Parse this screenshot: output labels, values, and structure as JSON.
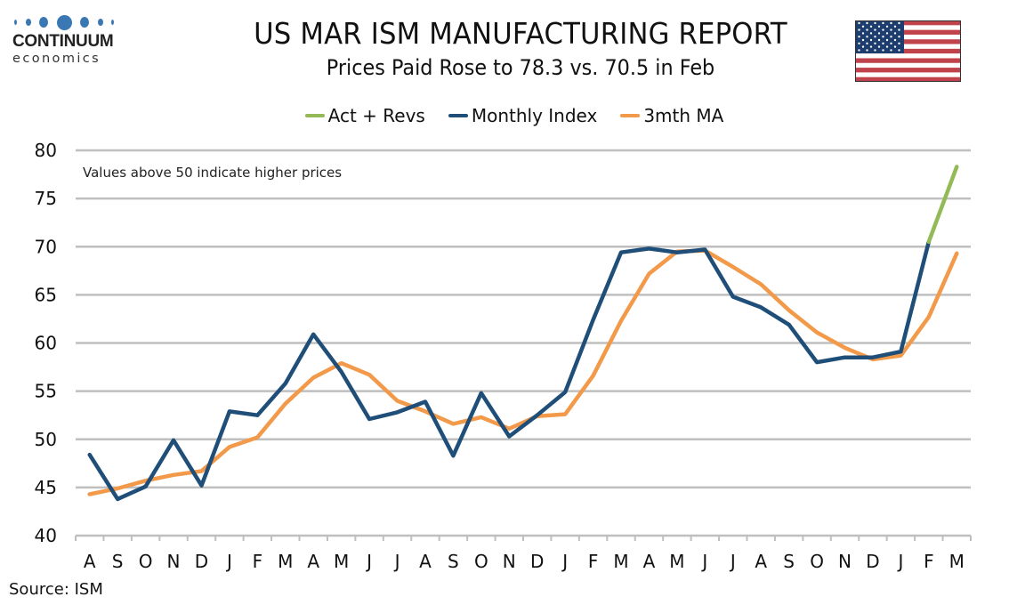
{
  "brand": {
    "name": "CONTINUUM",
    "sub": "economics",
    "color": "#3a78b4"
  },
  "header": {
    "title": "US MAR ISM MANUFACTURING REPORT",
    "subtitle": "Prices Paid Rose to 78.3 vs. 70.5 in Feb",
    "flag_icon": "us-flag-icon"
  },
  "source": "Source: ISM",
  "colors": {
    "act_revs": "#94ba57",
    "monthly": "#1f4e79",
    "ma": "#f2994a",
    "grid": "#bfbfbf",
    "flag_red": "#c0424a",
    "flag_blue": "#1c3d6e"
  },
  "chart_data": {
    "type": "line",
    "title": "US MAR ISM MANUFACTURING REPORT",
    "subtitle": "Prices Paid Rose to 78.3 vs. 70.5 in Feb",
    "annotation": "Values above 50 indicate higher prices",
    "xlabel": "",
    "ylabel": "",
    "ylim": [
      40,
      80
    ],
    "yticks": [
      40,
      45,
      50,
      55,
      60,
      65,
      70,
      75,
      80
    ],
    "grid": true,
    "legend_position": "top-center",
    "categories": [
      "A",
      "S",
      "O",
      "N",
      "D",
      "J",
      "F",
      "M",
      "A",
      "M",
      "J",
      "J",
      "A",
      "S",
      "O",
      "N",
      "D",
      "J",
      "F",
      "M",
      "A",
      "M",
      "J",
      "J",
      "A",
      "S",
      "O",
      "N",
      "D",
      "J",
      "F",
      "M"
    ],
    "series": [
      {
        "name": "Act + Revs",
        "color": "#94ba57",
        "values": [
          null,
          null,
          null,
          null,
          null,
          null,
          null,
          null,
          null,
          null,
          null,
          null,
          null,
          null,
          null,
          null,
          null,
          null,
          null,
          null,
          null,
          null,
          null,
          null,
          null,
          null,
          null,
          null,
          null,
          null,
          70.5,
          78.3
        ]
      },
      {
        "name": "Monthly Index",
        "color": "#1f4e79",
        "values": [
          48.4,
          43.8,
          45.1,
          49.9,
          45.2,
          52.9,
          52.5,
          55.8,
          60.9,
          57.0,
          52.1,
          52.8,
          53.9,
          48.3,
          54.8,
          50.3,
          52.5,
          54.9,
          62.4,
          69.4,
          69.8,
          69.4,
          69.7,
          64.8,
          63.7,
          61.9,
          58.0,
          58.5,
          58.5,
          59.1,
          70.5,
          null
        ]
      },
      {
        "name": "3mth MA",
        "color": "#f2994a",
        "values": [
          44.3,
          44.9,
          45.7,
          46.3,
          46.7,
          49.2,
          50.2,
          53.7,
          56.4,
          57.9,
          56.7,
          54.0,
          52.9,
          51.6,
          52.3,
          51.1,
          52.4,
          52.6,
          56.6,
          62.3,
          67.2,
          69.5,
          69.6,
          67.9,
          66.1,
          63.4,
          61.1,
          59.5,
          58.3,
          58.7,
          62.7,
          69.3
        ]
      }
    ]
  }
}
